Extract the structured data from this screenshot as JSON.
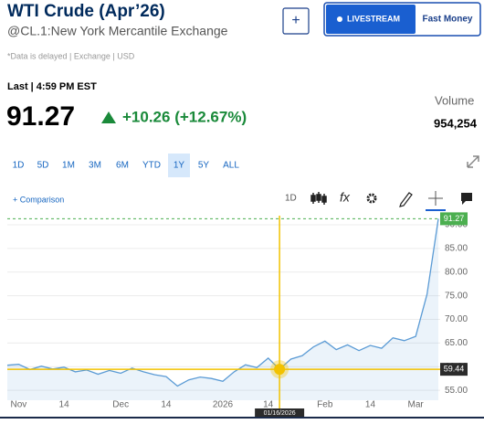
{
  "header": {
    "title": "WTI Crude (Apr’26)",
    "subtitle": "@CL.1:New York Mercantile Exchange",
    "note": "*Data is delayed | Exchange | USD",
    "add_button": "+",
    "livestream": "LIVESTREAM",
    "fast_money": "Fast Money"
  },
  "quote": {
    "last_label": "Last | 4:59 PM EST",
    "price": "91.27",
    "change": "+10.26 (+12.67%)",
    "volume_label": "Volume",
    "volume": "954,254"
  },
  "ranges": {
    "items": [
      "1D",
      "5D",
      "1M",
      "3M",
      "6M",
      "YTD",
      "1Y",
      "5Y",
      "ALL"
    ],
    "selected": "1Y"
  },
  "toolbar": {
    "comparison": "+ Comparison",
    "interval": "1D",
    "fx": "fx"
  },
  "chart_data": {
    "type": "line",
    "categories": [
      null,
      "Nov",
      null,
      null,
      null,
      "14",
      null,
      null,
      null,
      null,
      "Dec",
      null,
      null,
      null,
      "14",
      null,
      null,
      null,
      null,
      "2026",
      null,
      null,
      null,
      "14",
      null,
      null,
      null,
      null,
      "Feb",
      null,
      null,
      null,
      "14",
      null,
      null,
      null,
      "Mar",
      null,
      null
    ],
    "series": [
      {
        "color": "#5b9bd5",
        "values": [
          60.3,
          60.5,
          59.4,
          60.1,
          59.5,
          59.9,
          58.9,
          59.3,
          58.4,
          59.2,
          58.6,
          59.7,
          58.9,
          58.3,
          57.9,
          55.9,
          57.2,
          57.8,
          57.5,
          56.9,
          58.9,
          60.4,
          59.8,
          61.8,
          59.44,
          61.6,
          62.3,
          64.2,
          65.4,
          63.6,
          64.6,
          63.4,
          64.5,
          63.9,
          66.1,
          65.5,
          66.4,
          75.3,
          91.27
        ]
      }
    ],
    "ylim": [
      52.9,
      92.7
    ],
    "yticks": [
      {
        "value": 55,
        "label": "55.00"
      },
      {
        "value": 60,
        "label": "60.00"
      },
      {
        "value": 65,
        "label": "65.00"
      },
      {
        "value": 70,
        "label": "70.00"
      },
      {
        "value": 75,
        "label": "75.00"
      },
      {
        "value": 80,
        "label": "80.00"
      },
      {
        "value": 85,
        "label": "85.00"
      },
      {
        "value": 90,
        "label": "90.00"
      }
    ],
    "grid": true,
    "last_color": "#4caf50",
    "crosshair": {
      "date": "01/16/2026",
      "value": 59.44,
      "color": "#f2c200"
    }
  }
}
